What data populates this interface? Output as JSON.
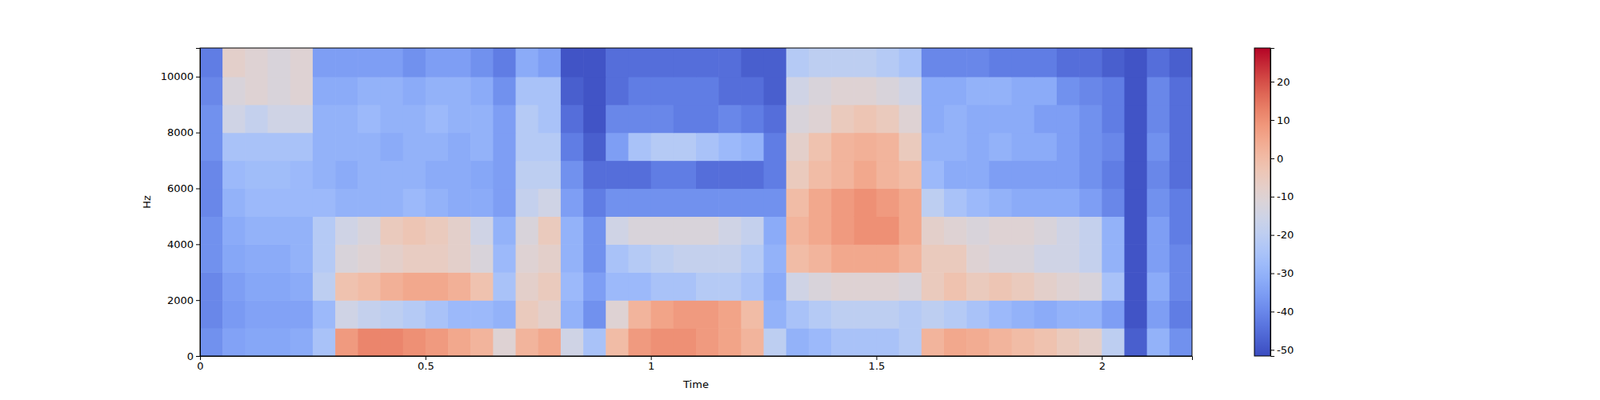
{
  "chart_data": {
    "type": "heatmap",
    "x_label": "Time",
    "y_label": "Hz",
    "xlim": [
      0,
      2.2
    ],
    "xticks": [
      0,
      0.5,
      1,
      1.5,
      2
    ],
    "ylim": [
      0,
      11025
    ],
    "yticks": [
      0,
      2000,
      4000,
      6000,
      8000,
      10000
    ],
    "zlim": [
      -51.6,
      28.8
    ],
    "zticks": [
      -50,
      -40,
      -30,
      -20,
      -10,
      0,
      10,
      20
    ],
    "x_bins": [
      0,
      0.05,
      0.1,
      0.15,
      0.2,
      0.25,
      0.3,
      0.35,
      0.4,
      0.45,
      0.5,
      0.55,
      0.6,
      0.65,
      0.7,
      0.75,
      0.8,
      0.85,
      0.9,
      0.95,
      1.0,
      1.05,
      1.1,
      1.15,
      1.2,
      1.25,
      1.3,
      1.35,
      1.4,
      1.45,
      1.5,
      1.55,
      1.6,
      1.65,
      1.7,
      1.75,
      1.8,
      1.85,
      1.9,
      1.95,
      2.0,
      2.05,
      2.1,
      2.15,
      2.2
    ],
    "y_bins": [
      0,
      1000,
      2000,
      3000,
      4000,
      5000,
      6000,
      7000,
      8000,
      9000,
      10000,
      11025
    ],
    "cells": [
      [
        -38,
        -34,
        -33,
        -33,
        -32,
        -25,
        8,
        12,
        12,
        10,
        8,
        5,
        2,
        -10,
        2,
        5,
        -15,
        -25,
        0,
        8,
        10,
        10,
        8,
        6,
        2,
        -20,
        -30,
        -28,
        -25,
        -25,
        -25,
        -22,
        2,
        5,
        4,
        2,
        0,
        -2,
        -5,
        -8,
        -20,
        -48,
        -30,
        -38
      ],
      [
        -40,
        -36,
        -34,
        -34,
        -34,
        -28,
        -15,
        -18,
        -20,
        -22,
        -25,
        -28,
        -28,
        -30,
        -5,
        -8,
        -30,
        -38,
        -10,
        2,
        6,
        8,
        8,
        6,
        0,
        -30,
        -25,
        -22,
        -20,
        -20,
        -20,
        -22,
        -20,
        -22,
        -25,
        -28,
        -30,
        -32,
        -30,
        -30,
        -35,
        -50,
        -35,
        -42
      ],
      [
        -40,
        -35,
        -33,
        -33,
        -32,
        -20,
        -2,
        0,
        3,
        5,
        5,
        3,
        -2,
        -25,
        -8,
        -5,
        -28,
        -35,
        -28,
        -28,
        -25,
        -25,
        -22,
        -22,
        -25,
        -32,
        -15,
        -12,
        -10,
        -10,
        -10,
        -12,
        -5,
        -2,
        -5,
        -3,
        -5,
        -8,
        -10,
        -12,
        -25,
        -50,
        -32,
        -40
      ],
      [
        -38,
        -33,
        -32,
        -32,
        -30,
        -22,
        -12,
        -10,
        -8,
        -6,
        -6,
        -8,
        -12,
        -28,
        -10,
        -8,
        -30,
        -38,
        -25,
        -22,
        -20,
        -18,
        -18,
        -18,
        -22,
        -30,
        0,
        2,
        5,
        5,
        5,
        2,
        -5,
        -5,
        -10,
        -12,
        -12,
        -15,
        -15,
        -18,
        -30,
        -50,
        -35,
        -40
      ],
      [
        -38,
        -32,
        -30,
        -30,
        -30,
        -22,
        -15,
        -12,
        -5,
        -3,
        -5,
        -8,
        -15,
        -30,
        -12,
        -5,
        -30,
        -38,
        -15,
        -12,
        -12,
        -12,
        -12,
        -15,
        -18,
        -32,
        2,
        5,
        8,
        10,
        10,
        5,
        -8,
        -10,
        -12,
        -10,
        -10,
        -12,
        -15,
        -18,
        -30,
        -50,
        -35,
        -42
      ],
      [
        -40,
        -30,
        -28,
        -28,
        -28,
        -28,
        -30,
        -30,
        -30,
        -28,
        -30,
        -32,
        -32,
        -35,
        -18,
        -15,
        -35,
        -42,
        -38,
        -38,
        -38,
        -38,
        -38,
        -38,
        -38,
        -38,
        0,
        5,
        8,
        10,
        8,
        5,
        -20,
        -25,
        -28,
        -30,
        -32,
        -32,
        -32,
        -35,
        -40,
        -50,
        -38,
        -42
      ],
      [
        -40,
        -28,
        -27,
        -27,
        -28,
        -30,
        -32,
        -30,
        -30,
        -30,
        -32,
        -32,
        -33,
        -35,
        -20,
        -20,
        -38,
        -45,
        -45,
        -45,
        -42,
        -42,
        -45,
        -45,
        -45,
        -42,
        -5,
        0,
        2,
        5,
        2,
        0,
        -28,
        -32,
        -32,
        -35,
        -35,
        -35,
        -35,
        -38,
        -42,
        -50,
        -40,
        -45
      ],
      [
        -38,
        -25,
        -25,
        -25,
        -25,
        -30,
        -30,
        -30,
        -32,
        -30,
        -30,
        -32,
        -30,
        -35,
        -22,
        -22,
        -42,
        -48,
        -35,
        -25,
        -22,
        -22,
        -25,
        -28,
        -30,
        -42,
        -8,
        -2,
        2,
        3,
        2,
        -5,
        -30,
        -30,
        -32,
        -30,
        -32,
        -32,
        -35,
        -38,
        -40,
        -50,
        -38,
        -45
      ],
      [
        -38,
        -15,
        -18,
        -15,
        -15,
        -30,
        -30,
        -28,
        -30,
        -30,
        -28,
        -30,
        -30,
        -35,
        -22,
        -25,
        -45,
        -50,
        -40,
        -40,
        -40,
        -42,
        -42,
        -40,
        -42,
        -45,
        -12,
        -10,
        -5,
        -3,
        -5,
        -10,
        -32,
        -30,
        -32,
        -32,
        -32,
        -35,
        -35,
        -38,
        -42,
        -50,
        -40,
        -45
      ],
      [
        -40,
        -12,
        -10,
        -12,
        -10,
        -32,
        -32,
        -30,
        -30,
        -32,
        -30,
        -30,
        -32,
        -38,
        -25,
        -25,
        -48,
        -50,
        -45,
        -42,
        -42,
        -42,
        -42,
        -45,
        -45,
        -48,
        -15,
        -12,
        -10,
        -10,
        -12,
        -15,
        -32,
        -32,
        -30,
        -30,
        -32,
        -32,
        -38,
        -40,
        -42,
        -50,
        -40,
        -45
      ],
      [
        -42,
        -8,
        -10,
        -12,
        -10,
        -35,
        -35,
        -35,
        -35,
        -38,
        -35,
        -35,
        -38,
        -42,
        -32,
        -35,
        -50,
        -50,
        -45,
        -45,
        -45,
        -45,
        -45,
        -45,
        -48,
        -48,
        -22,
        -20,
        -20,
        -20,
        -22,
        -25,
        -40,
        -40,
        -40,
        -42,
        -42,
        -42,
        -45,
        -45,
        -48,
        -50,
        -45,
        -48
      ]
    ]
  }
}
